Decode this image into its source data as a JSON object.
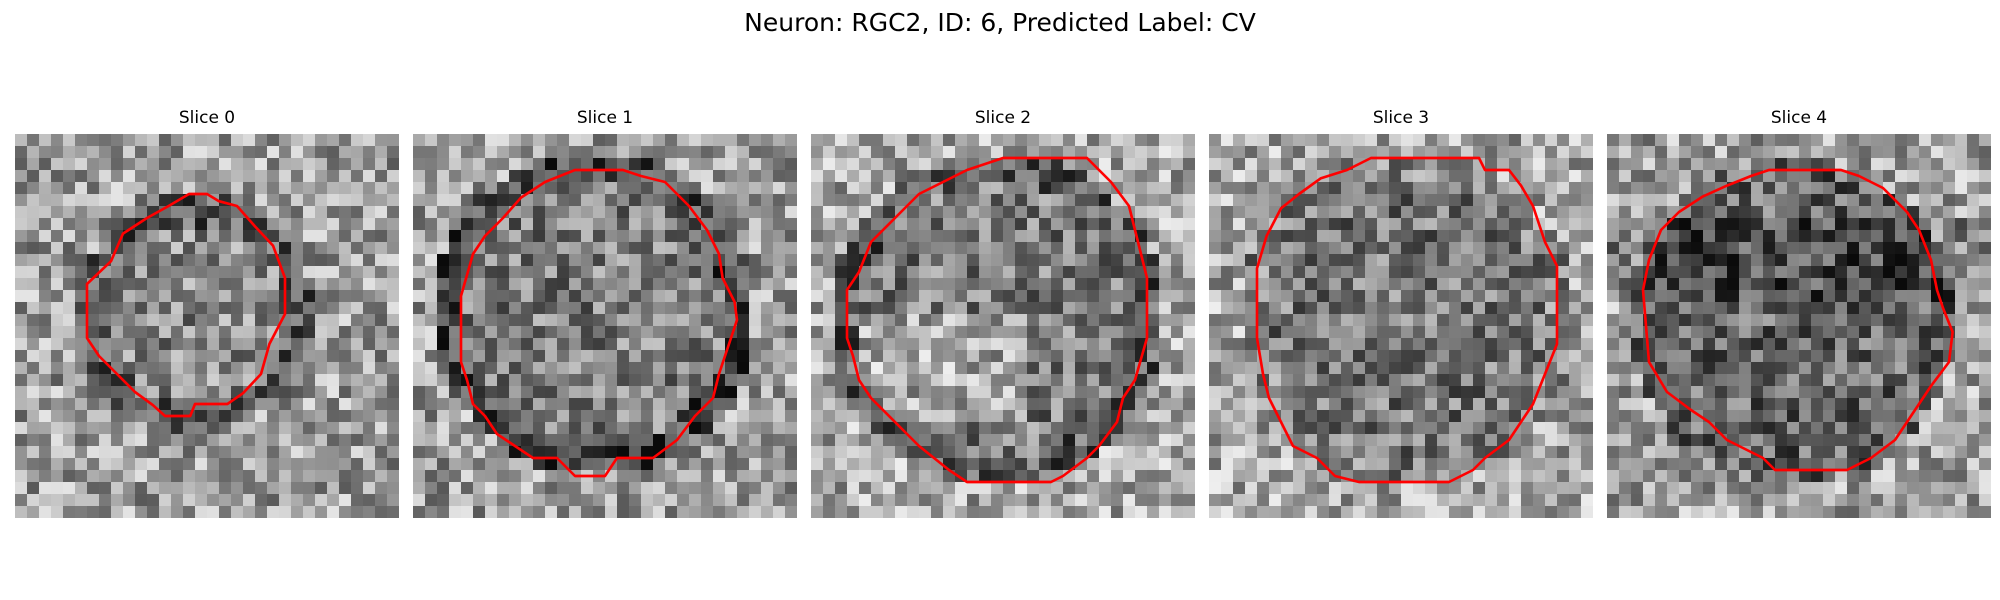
{
  "figure": {
    "title": "Neuron: RGC2, ID: 6, Predicted Label: CV"
  },
  "colors": {
    "contour": "#ff0000",
    "background": "#ffffff"
  },
  "slices": [
    {
      "label": "Slice 0"
    },
    {
      "label": "Slice 1"
    },
    {
      "label": "Slice 2"
    },
    {
      "label": "Slice 3"
    },
    {
      "label": "Slice 4"
    }
  ]
}
